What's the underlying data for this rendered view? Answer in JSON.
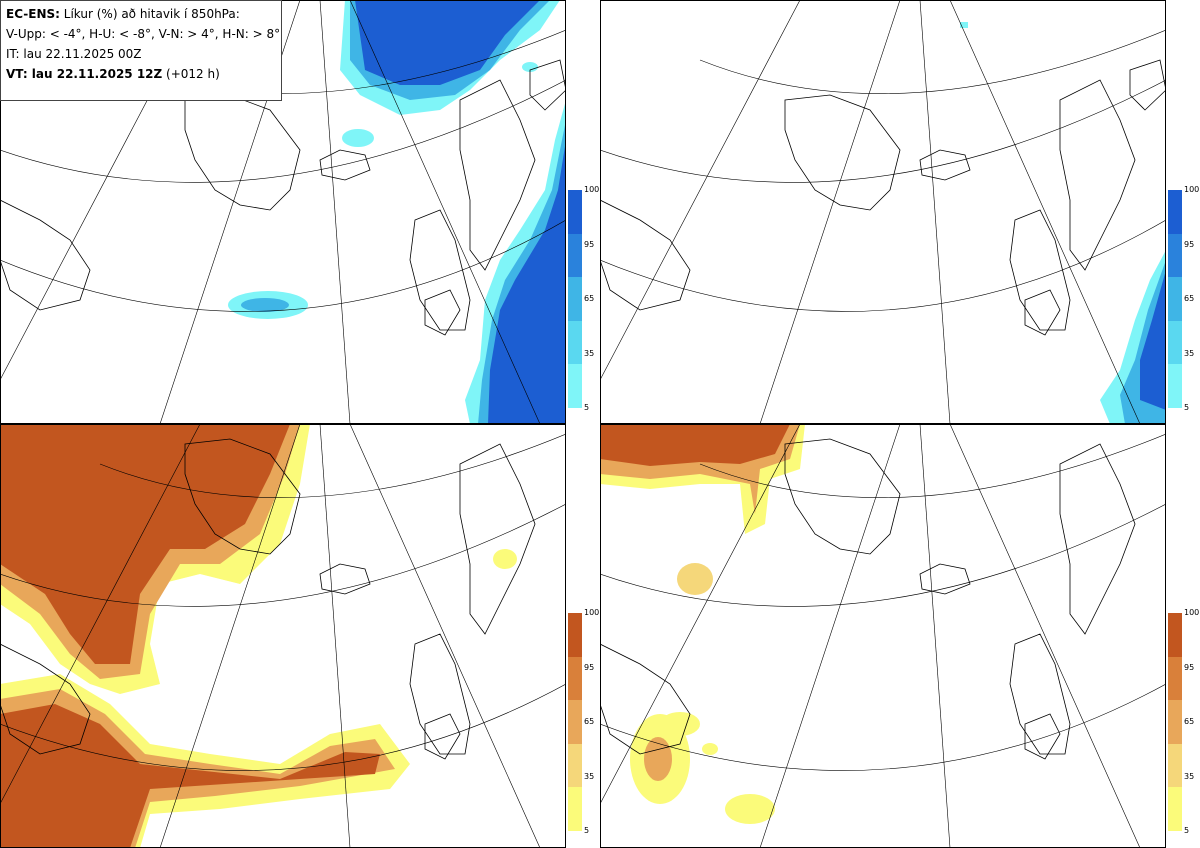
{
  "header": {
    "model": "EC-ENS:",
    "title": "Líkur (%) að hitavik í 850hPa:",
    "thresholds": "V-Upp: < -4°, H-U: < -8°, V-N: > 4°, H-N: > 8°",
    "initial_time": "IT: lau 22.11.2025 00Z",
    "valid_label": "VT: lau 22.11.2025 12Z",
    "lead": "(+012 h)"
  },
  "colorbars": {
    "cold": {
      "colors": [
        "#7ff5f8",
        "#5ad8f0",
        "#3fb5e6",
        "#2a82dc",
        "#1c5ed2"
      ],
      "ticks": [
        "100",
        "95",
        "65",
        "35",
        "5"
      ]
    },
    "warm": {
      "colors": [
        "#fbfb7a",
        "#f5d77a",
        "#e8a75a",
        "#d9803a",
        "#c2561f"
      ],
      "ticks": [
        "100",
        "95",
        "65",
        "35",
        "5"
      ]
    }
  },
  "panels": [
    {
      "id": "v-upp",
      "field": "cold"
    },
    {
      "id": "h-u",
      "field": "cold"
    },
    {
      "id": "v-n",
      "field": "warm"
    },
    {
      "id": "h-n",
      "field": "warm"
    }
  ]
}
